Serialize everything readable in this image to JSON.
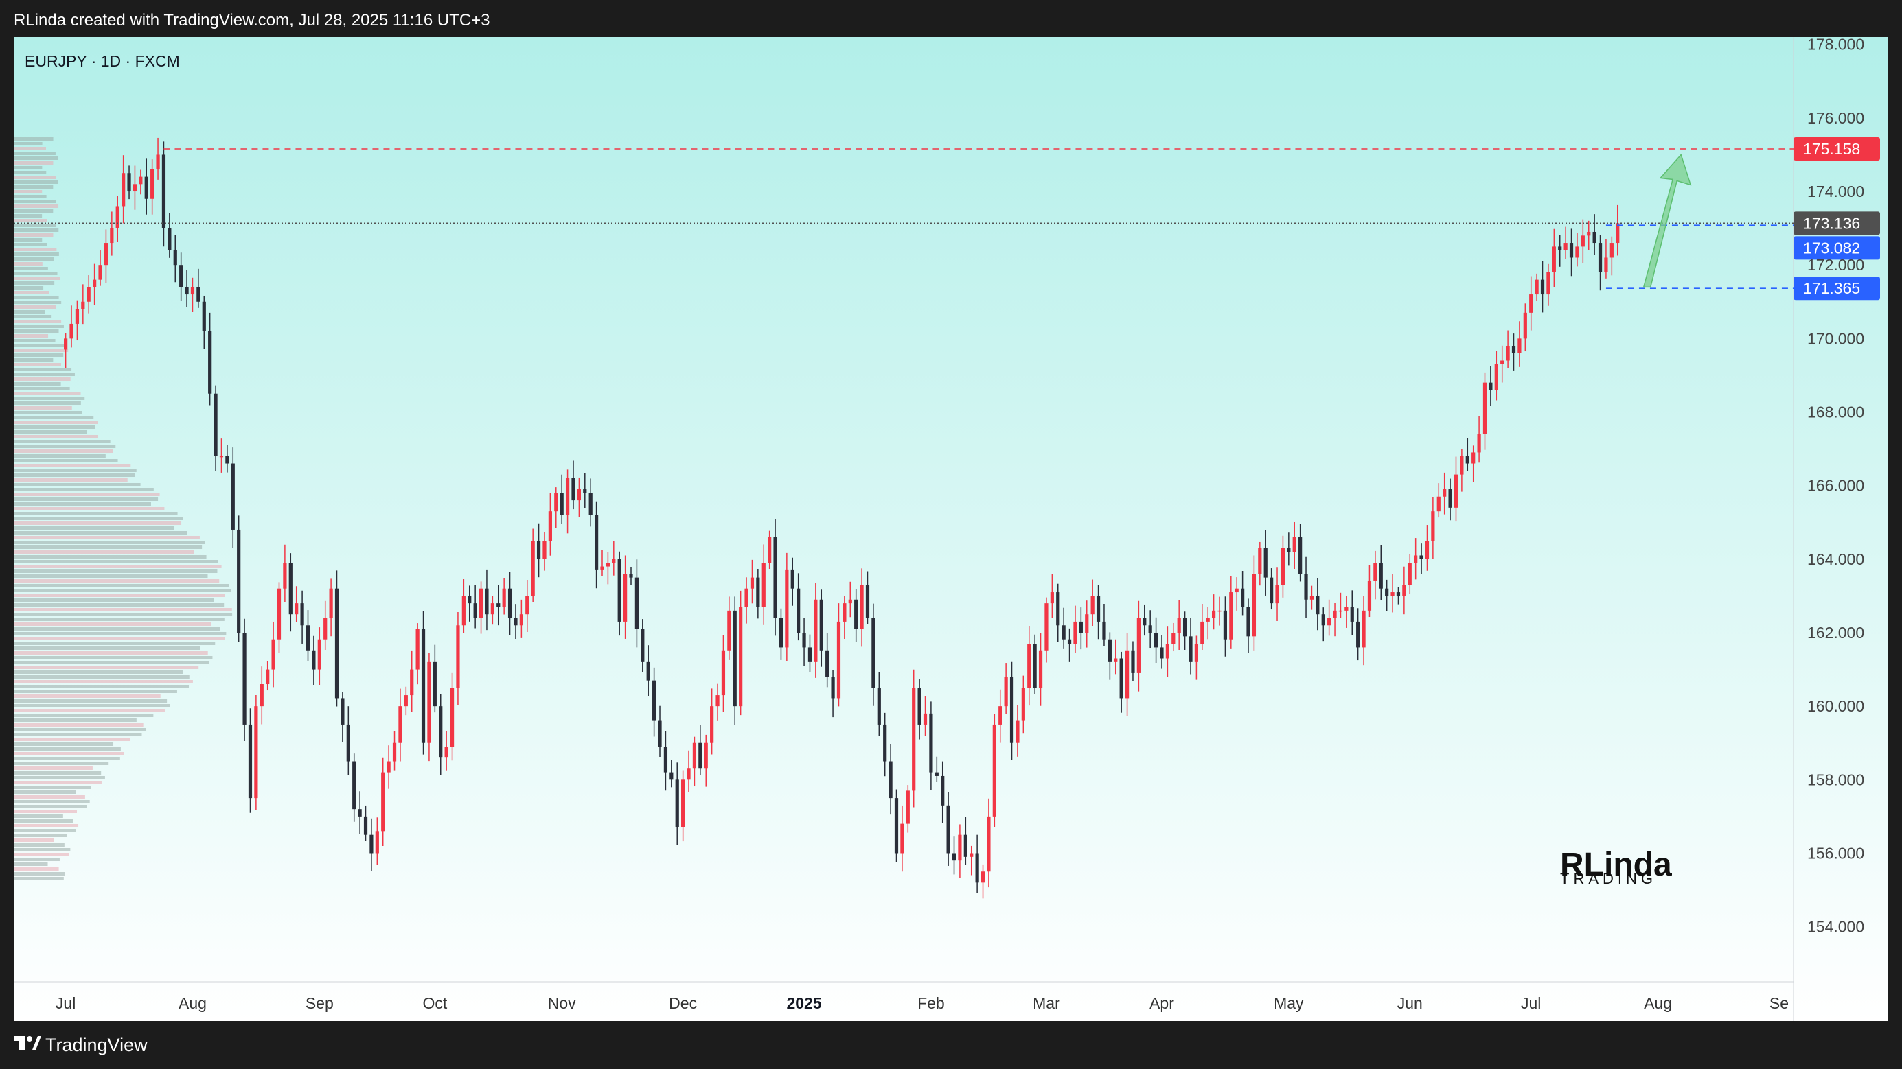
{
  "header": {
    "attribution": "RLinda created with TradingView.com, Jul 28, 2025 11:16 UTC+3"
  },
  "footer": {
    "brand": "TradingView"
  },
  "chart_data": {
    "type": "candlestick",
    "symbol_label": "EURJPY · 1D · FXCM",
    "y_range": [
      152.5,
      178.2
    ],
    "price_ticks": [
      "154.000",
      "156.000",
      "158.000",
      "160.000",
      "162.000",
      "164.000",
      "166.000",
      "168.000",
      "170.000",
      "172.000",
      "174.000",
      "176.000",
      "178.000"
    ],
    "time_ticks": [
      {
        "label": "Jul",
        "t": 0
      },
      {
        "label": "Aug",
        "t": 22
      },
      {
        "label": "Sep",
        "t": 44
      },
      {
        "label": "Oct",
        "t": 64
      },
      {
        "label": "Nov",
        "t": 86
      },
      {
        "label": "Dec",
        "t": 107
      },
      {
        "label": "2025",
        "t": 128,
        "bold": true
      },
      {
        "label": "Feb",
        "t": 150
      },
      {
        "label": "Mar",
        "t": 170
      },
      {
        "label": "Apr",
        "t": 190
      },
      {
        "label": "May",
        "t": 212
      },
      {
        "label": "Jun",
        "t": 233
      },
      {
        "label": "Jul",
        "t": 254
      },
      {
        "label": "Aug",
        "t": 276
      },
      {
        "label": "Se",
        "t": 297
      }
    ],
    "time_range": [
      -9,
      299.5
    ],
    "levels": [
      {
        "name": "resistance",
        "value": 175.158,
        "label": "175.158",
        "color": "#f23645",
        "style": "dashed"
      },
      {
        "name": "current",
        "value": 173.136,
        "label": "173.136",
        "color": "#505050",
        "style": "dotted"
      },
      {
        "name": "level-a",
        "value": 173.082,
        "label": "173.082",
        "color": "#2962ff",
        "style": "dashed"
      },
      {
        "name": "level-b",
        "value": 171.365,
        "label": "171.365",
        "color": "#2962ff",
        "style": "dashed"
      }
    ],
    "up_color": "#f23645",
    "down_color": "#2a2e39",
    "arrow_color": "#7ccf8e",
    "background_top": "#b2efe9",
    "background_bottom": "#ffffff",
    "closes": [
      170.0,
      170.4,
      170.8,
      171.0,
      171.4,
      171.6,
      172.0,
      172.6,
      173.0,
      173.6,
      174.5,
      174.0,
      174.2,
      174.4,
      173.8,
      174.6,
      175.0,
      173.0,
      172.4,
      172.0,
      171.4,
      171.2,
      171.4,
      171.0,
      170.2,
      168.5,
      166.8,
      166.8,
      166.6,
      164.8,
      162.0,
      159.5,
      157.5,
      160.0,
      160.6,
      161.0,
      161.8,
      163.2,
      163.9,
      162.5,
      162.8,
      162.2,
      161.5,
      161.0,
      161.8,
      162.4,
      163.2,
      160.2,
      159.5,
      158.5,
      157.2,
      157.0,
      156.5,
      156.0,
      156.6,
      158.2,
      158.5,
      159.0,
      160.0,
      160.3,
      161.0,
      162.1,
      159.0,
      161.2,
      160.0,
      158.6,
      158.9,
      160.5,
      162.2,
      163.0,
      162.8,
      162.4,
      163.2,
      162.5,
      162.8,
      162.7,
      163.2,
      162.4,
      162.2,
      162.5,
      163.0,
      164.5,
      164.0,
      164.5,
      165.3,
      165.8,
      165.2,
      166.2,
      165.6,
      165.9,
      165.8,
      165.2,
      163.7,
      163.8,
      163.9,
      164.0,
      162.3,
      163.6,
      163.5,
      162.1,
      161.2,
      160.7,
      159.6,
      158.9,
      158.2,
      158.0,
      156.7,
      158.0,
      158.3,
      159.0,
      158.3,
      159.0,
      160.0,
      160.3,
      161.5,
      162.6,
      160.0,
      162.7,
      163.2,
      163.5,
      162.7,
      163.9,
      164.6,
      162.4,
      161.6,
      163.7,
      163.2,
      162.0,
      161.6,
      161.2,
      162.9,
      161.5,
      160.8,
      160.2,
      162.3,
      162.8,
      162.9,
      162.1,
      163.3,
      162.4,
      160.5,
      159.5,
      158.5,
      157.5,
      156.0,
      156.8,
      157.7,
      160.5,
      159.5,
      159.8,
      158.2,
      158.1,
      157.3,
      156.0,
      155.8,
      156.5,
      155.9,
      156.0,
      155.2,
      155.5,
      157.0,
      159.5,
      160.0,
      160.8,
      159.0,
      159.6,
      160.5,
      161.7,
      160.5,
      161.5,
      162.8,
      163.1,
      162.2,
      161.8,
      161.7,
      162.3,
      162.0,
      162.5,
      163.0,
      162.3,
      161.8,
      161.2,
      161.3,
      160.2,
      161.5,
      160.9,
      162.4,
      162.2,
      162.0,
      161.6,
      161.3,
      161.7,
      162.0,
      162.4,
      161.9,
      161.2,
      161.7,
      162.3,
      162.4,
      162.6,
      162.6,
      161.8,
      163.1,
      163.2,
      162.7,
      161.9,
      163.6,
      164.3,
      163.5,
      162.8,
      163.3,
      164.3,
      164.2,
      164.6,
      163.6,
      162.9,
      163.0,
      162.5,
      162.2,
      162.4,
      162.6,
      162.6,
      162.7,
      162.3,
      161.6,
      162.6,
      163.4,
      163.9,
      163.2,
      163.0,
      163.1,
      163.0,
      163.3,
      163.9,
      164.1,
      164.0,
      164.5,
      165.3,
      165.7,
      165.9,
      165.4,
      166.3,
      166.8,
      166.6,
      166.9,
      167.4,
      168.8,
      168.6,
      169.3,
      169.4,
      169.8,
      169.6,
      170.0,
      170.7,
      171.2,
      171.6,
      171.2,
      171.8,
      172.5,
      172.4,
      172.6,
      172.2,
      172.5,
      172.8,
      172.9,
      172.6,
      171.8,
      172.2,
      172.6,
      173.136
    ],
    "watermark": {
      "main": "RLinda",
      "sub": "TRADING"
    }
  }
}
